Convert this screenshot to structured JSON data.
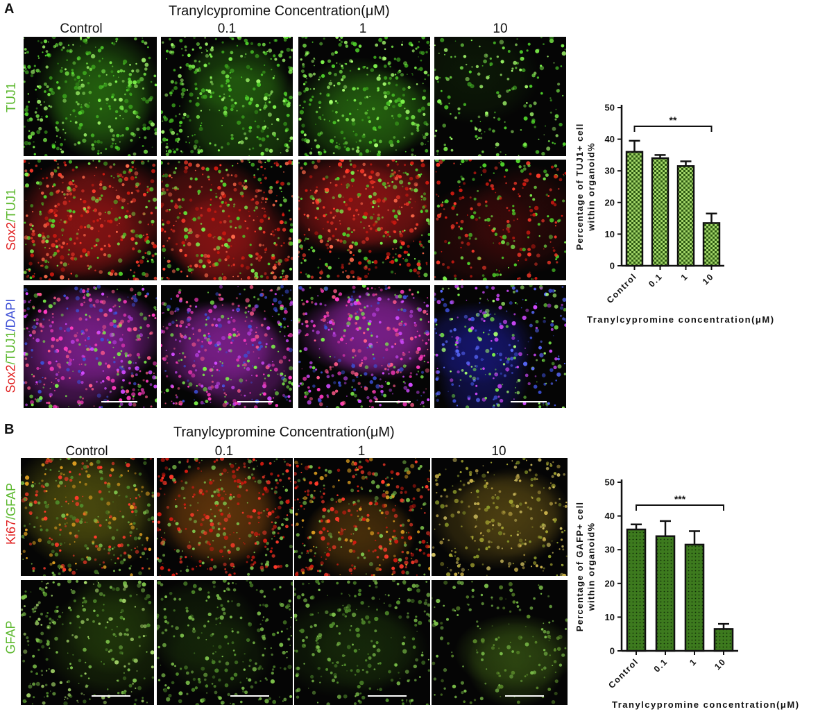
{
  "panelA": {
    "letter": "A",
    "title": "Tranylcypromine Concentration(μM)",
    "columns": [
      "Control",
      "0.1",
      "1",
      "10"
    ],
    "row_labels": [
      {
        "parts": [
          {
            "text": "TUJ1",
            "color": "#5cb82e"
          }
        ]
      },
      {
        "parts": [
          {
            "text": "Sox2",
            "color": "#e02020"
          },
          {
            "text": "/TUJ1",
            "color": "#5cb82e"
          }
        ]
      },
      {
        "parts": [
          {
            "text": "Sox2",
            "color": "#e02020"
          },
          {
            "text": "/TUJ1",
            "color": "#5cb82e"
          },
          {
            "text": "/DAPI",
            "color": "#3d4fd6"
          }
        ]
      }
    ]
  },
  "panelB": {
    "letter": "B",
    "title": "Tranylcypromine Concentration(μM)",
    "columns": [
      "Control",
      "0.1",
      "1",
      "10"
    ],
    "row_labels": [
      {
        "parts": [
          {
            "text": "Ki67",
            "color": "#e02020"
          },
          {
            "text": "/GFAP",
            "color": "#5cb82e"
          }
        ]
      },
      {
        "parts": [
          {
            "text": "GFAP",
            "color": "#5cb82e"
          }
        ]
      }
    ]
  },
  "chart_data": [
    {
      "type": "bar",
      "categories": [
        "Control",
        "0.1",
        "1",
        "10"
      ],
      "values": [
        36,
        34,
        31.5,
        13.5
      ],
      "errors": [
        3.5,
        1,
        1.5,
        3
      ],
      "ylabel": "Percentage of TUJ1+ cell within organoid%",
      "xlabel": "Tranylcypromine concentration(μM)",
      "ylim": [
        0,
        50
      ],
      "yticks": [
        0,
        10,
        20,
        30,
        40,
        50
      ],
      "significance": {
        "label": "**",
        "from": "Control",
        "to": "10"
      },
      "bar_color": "#a4d86a",
      "pattern": "checker"
    },
    {
      "type": "bar",
      "categories": [
        "Control",
        "0.1",
        "1",
        "10"
      ],
      "values": [
        36,
        34,
        31.5,
        6.5
      ],
      "errors": [
        1.5,
        4.5,
        4,
        1.5
      ],
      "ylabel": "Percentage of GAFP+ cell within organoid%",
      "xlabel": "Tranylcypromine concentration(μM)",
      "ylim": [
        0,
        50
      ],
      "yticks": [
        0,
        10,
        20,
        30,
        40,
        50
      ],
      "significance": {
        "label": "***",
        "from": "Control",
        "to": "10"
      },
      "bar_color": "#3d7a1e",
      "pattern": "dots"
    }
  ]
}
